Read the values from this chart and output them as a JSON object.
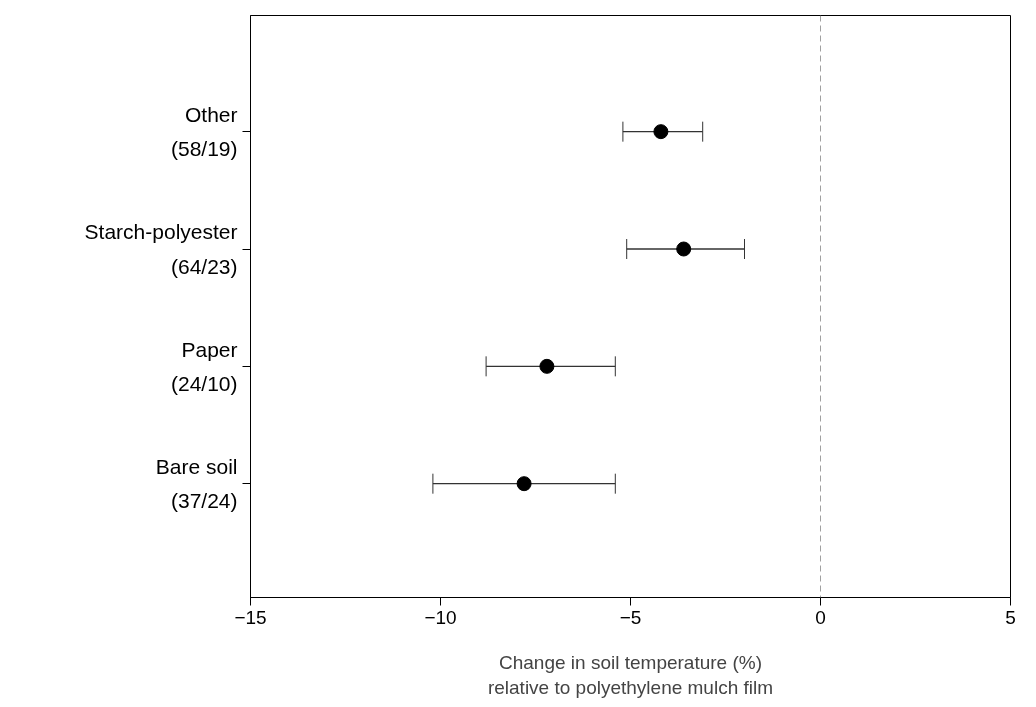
{
  "chart_data": {
    "type": "scatter",
    "orientation": "horizontal",
    "categories": [
      "Other\n(58/19)",
      "Starch-polyester\n(64/23)",
      "Paper\n(24/10)",
      "Bare soil\n(37/24)"
    ],
    "values": [
      -4.2,
      -3.6,
      -7.2,
      -7.8
    ],
    "errors": [
      [
        -5.2,
        -3.1
      ],
      [
        -5.1,
        -2.0
      ],
      [
        -8.8,
        -5.4
      ],
      [
        -10.2,
        -5.4
      ]
    ],
    "color": "#000000",
    "marker": "circle",
    "xlim": [
      -15,
      5
    ],
    "xticks": [
      -15,
      -10,
      -5,
      0,
      5
    ],
    "xlabel": "Change in soil temperature (%)\nrelative to polyethylene mulch film",
    "ref_lines": [
      {
        "axis": "x",
        "value": 0,
        "color": "#a0a0a0",
        "line_style": "dashed"
      }
    ],
    "grid": false
  }
}
